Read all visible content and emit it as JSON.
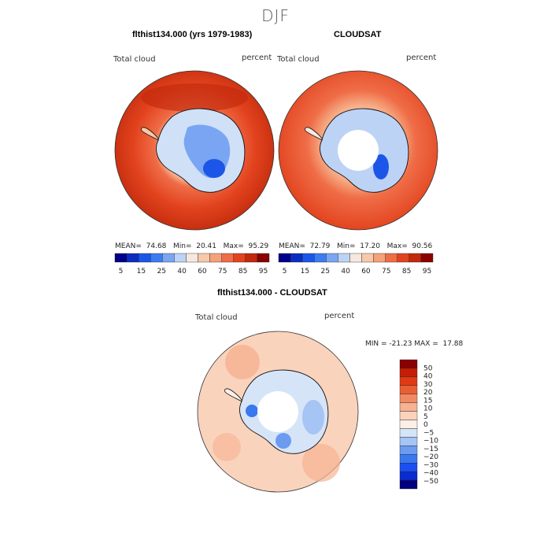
{
  "season": "DJF",
  "colors": {
    "abs_scale": [
      "#00008b",
      "#0c2cc0",
      "#1c56e8",
      "#3d7cf0",
      "#7aa5f2",
      "#bcd3f5",
      "#f6e8df",
      "#f7c8a9",
      "#f5a17a",
      "#ef6d47",
      "#e2431e",
      "#c12a0c",
      "#8b0000"
    ],
    "diff_scale": [
      "#000080",
      "#0a2bd0",
      "#1a4ff0",
      "#3a78f0",
      "#6c9bf0",
      "#a6c4f4",
      "#d6e4f7",
      "#fbefe6",
      "#fad3bd",
      "#f6b291",
      "#f18a63",
      "#e95f35",
      "#e03a15",
      "#c41e06",
      "#8b0000"
    ]
  },
  "chart_data": [
    {
      "type": "heatmap",
      "title": "flthist134.000 (yrs 1979-1983)",
      "variable_label": "Total cloud",
      "units_label": "percent",
      "stats": {
        "mean_label": "MEAN=",
        "mean": "74.68",
        "min_label": "Min=",
        "min": "20.41",
        "max_label": "Max=",
        "max": "95.29"
      },
      "colorbar_ticks": [
        "5",
        "15",
        "25",
        "40",
        "60",
        "75",
        "85",
        "95"
      ]
    },
    {
      "type": "heatmap",
      "title": "CLOUDSAT",
      "variable_label": "Total cloud",
      "units_label": "percent",
      "stats": {
        "mean_label": "MEAN=",
        "mean": "72.79",
        "min_label": "Min=",
        "min": "17.20",
        "max_label": "Max=",
        "max": "90.56"
      },
      "colorbar_ticks": [
        "5",
        "15",
        "25",
        "40",
        "60",
        "75",
        "85",
        "95"
      ]
    },
    {
      "type": "heatmap",
      "title": "flthist134.000 - CLOUDSAT",
      "variable_label": "Total cloud",
      "units_label": "percent",
      "minmax_text": "MIN = -21.23 MAX =  17.88",
      "colorbar_ticks": [
        "50",
        "40",
        "30",
        "20",
        "15",
        "10",
        "5",
        "0",
        "−5",
        "−10",
        "−15",
        "−20",
        "−30",
        "−40",
        "−50"
      ]
    }
  ]
}
